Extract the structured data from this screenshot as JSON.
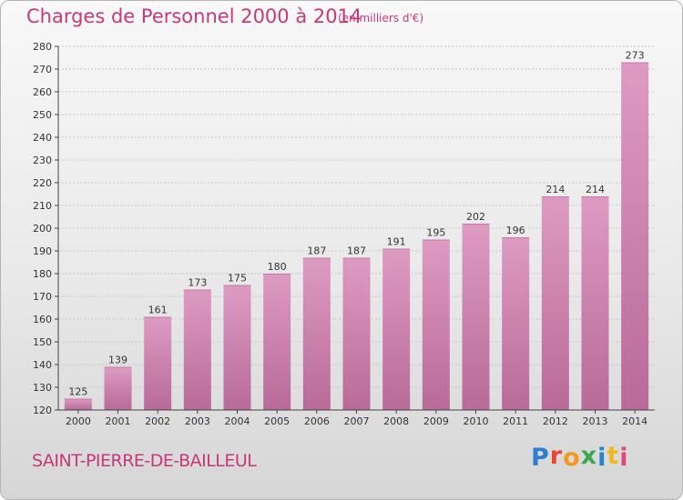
{
  "chart_data": {
    "type": "bar",
    "title": "Charges de Personnel 2000 à 2014",
    "subtitle": "(en milliers d'€)",
    "categories": [
      "2000",
      "2001",
      "2002",
      "2003",
      "2004",
      "2005",
      "2006",
      "2007",
      "2008",
      "2009",
      "2010",
      "2011",
      "2012",
      "2013",
      "2014"
    ],
    "values": [
      125,
      139,
      161,
      173,
      175,
      180,
      187,
      187,
      191,
      195,
      202,
      196,
      214,
      214,
      273
    ],
    "ylim": [
      120,
      280
    ],
    "yticks": [
      120,
      130,
      140,
      150,
      160,
      170,
      180,
      190,
      200,
      210,
      220,
      230,
      240,
      250,
      260,
      270,
      280
    ],
    "grid": true,
    "bar_color": "#dd9bc2",
    "bar_color_dark": "#b86a98"
  },
  "footer": {
    "commune": "SAINT-PIERRE-DE-BAILLEUL",
    "logo_letters": [
      "P",
      "r",
      "o",
      "x",
      "i",
      "t",
      "i"
    ],
    "logo_colors": [
      "#2f7fd1",
      "#e8462e",
      "#f39a1e",
      "#3aa84a",
      "#1f86c9",
      "#f2b81d",
      "#e0457b"
    ]
  }
}
